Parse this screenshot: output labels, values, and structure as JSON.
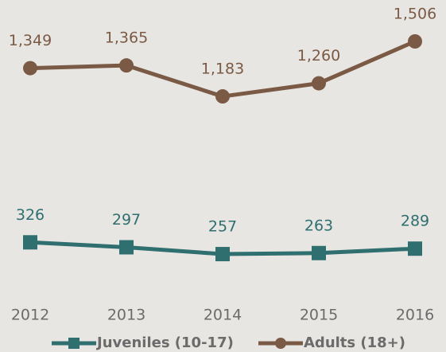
{
  "chart_data": {
    "type": "line",
    "categories": [
      "2012",
      "2013",
      "2014",
      "2015",
      "2016"
    ],
    "series": [
      {
        "name": "Juveniles (10-17)",
        "color": "#2f6f6f",
        "marker": "square",
        "values": [
          326,
          297,
          257,
          263,
          289
        ]
      },
      {
        "name": "Adults (18+)",
        "color": "#7b5a45",
        "marker": "circle",
        "values": [
          1349,
          1365,
          1183,
          1260,
          1506
        ],
        "value_labels": [
          "1,349",
          "1,365",
          "1,183",
          "1,260",
          "1,506"
        ]
      }
    ]
  }
}
